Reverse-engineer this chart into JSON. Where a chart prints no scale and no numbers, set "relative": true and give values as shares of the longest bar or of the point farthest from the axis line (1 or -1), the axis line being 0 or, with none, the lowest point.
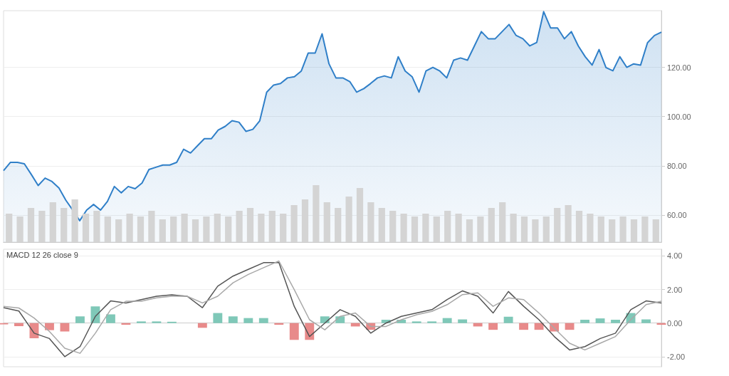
{
  "chart_data": [
    {
      "type": "area",
      "categories": [
        null,
        null,
        null,
        null,
        null,
        null,
        null,
        null,
        null,
        null,
        null,
        null,
        null,
        null,
        null,
        null,
        null,
        null,
        null,
        null,
        null,
        null,
        null,
        null,
        null,
        null,
        null,
        null,
        null,
        null,
        null,
        null,
        null,
        null,
        null,
        null,
        null,
        null,
        null,
        null,
        null,
        null,
        null,
        null,
        null,
        null,
        null,
        null,
        null,
        null,
        null,
        null,
        null,
        null,
        null,
        null,
        null,
        null,
        null,
        null,
        null,
        null,
        null,
        null,
        null,
        null,
        null,
        null,
        null,
        null,
        null,
        null,
        null,
        null,
        null,
        null,
        null,
        null,
        null,
        null,
        null,
        null,
        null,
        null,
        null,
        null,
        null,
        null,
        null,
        null,
        null,
        null,
        null,
        null,
        null,
        null
      ],
      "series": [
        {
          "color": "#2f7fc8",
          "values": [
            78,
            81.4,
            81.4,
            80.8,
            76.5,
            72,
            75,
            73.6,
            71,
            66,
            62,
            57.7,
            62,
            64.3,
            62,
            65.5,
            71.6,
            69,
            71.6,
            70.7,
            73,
            78.5,
            79.4,
            80.3,
            80.3,
            81.4,
            86.7,
            85.2,
            88.1,
            91,
            91,
            94.5,
            96,
            98.3,
            97.7,
            94,
            94.8,
            98.3,
            109.9,
            112.8,
            113.4,
            115.7,
            116.2,
            118.5,
            125.8,
            125.8,
            133.6,
            121.4,
            115.7,
            115.7,
            114.2,
            109.9,
            111.3,
            113.4,
            115.7,
            116.5,
            115.7,
            124.3,
            118.5,
            116.2,
            109.9,
            118.5,
            120,
            118.5,
            115.7,
            122.9,
            123.8,
            122.9,
            128.7,
            134.5,
            131.6,
            131.6,
            134.5,
            137.4,
            133,
            131.6,
            128.7,
            130.1,
            142.6,
            136,
            136,
            131.6,
            134.5,
            128.7,
            124.3,
            120.9,
            127.2,
            119.9,
            118.6,
            124.3,
            120,
            121.4,
            120.9,
            130,
            132.9,
            134.3
          ]
        }
      ],
      "ylim": [
        49,
        143
      ],
      "yticks": [
        {
          "value": 60,
          "label": "60.00"
        },
        {
          "value": 80,
          "label": "80.00"
        },
        {
          "value": 100,
          "label": "100.00"
        },
        {
          "value": 120,
          "label": "120.00"
        }
      ],
      "grid": "y",
      "marker": "none",
      "line_style": "solid",
      "tick_labels": "y"
    },
    {
      "type": "bar",
      "relative": true,
      "categories": [
        null,
        null,
        null,
        null,
        null,
        null,
        null,
        null,
        null,
        null,
        null,
        null,
        null,
        null,
        null,
        null,
        null,
        null,
        null,
        null,
        null,
        null,
        null,
        null,
        null,
        null,
        null,
        null,
        null,
        null,
        null,
        null,
        null,
        null,
        null,
        null,
        null,
        null,
        null,
        null,
        null,
        null,
        null,
        null,
        null,
        null,
        null,
        null,
        null,
        null,
        null,
        null,
        null,
        null,
        null,
        null,
        null,
        null,
        null,
        null
      ],
      "series": [
        {
          "color": "#d4d4d4",
          "values": [
            0.5,
            0.45,
            0.6,
            0.55,
            0.7,
            0.6,
            0.75,
            0.5,
            0.55,
            0.45,
            0.4,
            0.5,
            0.45,
            0.55,
            0.4,
            0.45,
            0.5,
            0.4,
            0.45,
            0.5,
            0.45,
            0.55,
            0.6,
            0.5,
            0.55,
            0.5,
            0.65,
            0.75,
            1,
            0.7,
            0.6,
            0.8,
            0.95,
            0.7,
            0.6,
            0.55,
            0.5,
            0.45,
            0.5,
            0.45,
            0.55,
            0.5,
            0.4,
            0.45,
            0.6,
            0.7,
            0.5,
            0.45,
            0.4,
            0.45,
            0.6,
            0.65,
            0.55,
            0.5,
            0.45,
            0.4,
            0.45,
            0.4,
            0.45,
            0.4
          ]
        }
      ],
      "grid": false,
      "tick_labels": false
    },
    {
      "type": "line",
      "title": "MACD 12 26 close 9",
      "categories": [
        null,
        null,
        null,
        null,
        null,
        null,
        null,
        null,
        null,
        null,
        null,
        null,
        null,
        null,
        null,
        null,
        null,
        null,
        null,
        null,
        null,
        null,
        null,
        null,
        null,
        null,
        null,
        null,
        null,
        null,
        null,
        null,
        null,
        null,
        null,
        null,
        null,
        null,
        null,
        null,
        null,
        null,
        null,
        null
      ],
      "series": [
        {
          "color": "#555555",
          "values": [
            0.92,
            0.72,
            -0.6,
            -0.92,
            -2.0,
            -1.4,
            0.4,
            1.32,
            1.2,
            1.4,
            1.6,
            1.68,
            1.6,
            0.92,
            2.2,
            2.8,
            3.2,
            3.6,
            3.6,
            1.0,
            -0.8,
            0,
            0.8,
            0.4,
            -0.6,
            0,
            0.4,
            0.6,
            0.8,
            1.4,
            1.92,
            1.6,
            0.6,
            1.88,
            1.0,
            0.2,
            -0.8,
            -1.6,
            -1.4,
            -0.92,
            -0.6,
            0.8,
            1.32,
            1.2
          ]
        },
        {
          "color": "#a8a8a8",
          "values": [
            1.0,
            0.9,
            0.3,
            -0.5,
            -1.5,
            -1.8,
            -0.6,
            0.8,
            1.3,
            1.3,
            1.5,
            1.6,
            1.6,
            1.2,
            1.6,
            2.4,
            2.9,
            3.3,
            3.7,
            2.0,
            0.2,
            -0.4,
            0.4,
            0.6,
            -0.2,
            -0.2,
            0.2,
            0.5,
            0.7,
            1.1,
            1.7,
            1.8,
            1.0,
            1.5,
            1.4,
            0.6,
            -0.3,
            -1.2,
            -1.6,
            -1.2,
            -0.8,
            0.2,
            1.1,
            1.3
          ]
        },
        {
          "type": "bar",
          "values": [
            -0.08,
            -0.18,
            -0.9,
            -0.42,
            -0.5,
            0.4,
            1.0,
            0.52,
            -0.1,
            0.1,
            0.1,
            0.08,
            0,
            -0.28,
            0.6,
            0.4,
            0.3,
            0.3,
            -0.1,
            -1.0,
            -1.0,
            0.4,
            0.4,
            -0.2,
            -0.4,
            0.2,
            0.2,
            0.1,
            0.1,
            0.3,
            0.22,
            -0.2,
            -0.4,
            0.38,
            -0.4,
            -0.4,
            -0.5,
            -0.4,
            0.2,
            0.28,
            0.2,
            0.6,
            0.22,
            -0.1
          ],
          "colors": [
            "#e88a8a",
            "#e88a8a",
            "#e88a8a",
            "#e88a8a",
            "#e88a8a",
            "#7fc8b8",
            "#7fc8b8",
            "#7fc8b8",
            "#e88a8a",
            "#7fc8b8",
            "#7fc8b8",
            "#7fc8b8",
            "#7fc8b8",
            "#e88a8a",
            "#7fc8b8",
            "#7fc8b8",
            "#7fc8b8",
            "#7fc8b8",
            "#e88a8a",
            "#e88a8a",
            "#e88a8a",
            "#7fc8b8",
            "#7fc8b8",
            "#e88a8a",
            "#e88a8a",
            "#7fc8b8",
            "#7fc8b8",
            "#7fc8b8",
            "#7fc8b8",
            "#7fc8b8",
            "#7fc8b8",
            "#e88a8a",
            "#e88a8a",
            "#7fc8b8",
            "#e88a8a",
            "#e88a8a",
            "#e88a8a",
            "#e88a8a",
            "#7fc8b8",
            "#7fc8b8",
            "#7fc8b8",
            "#7fc8b8",
            "#7fc8b8",
            "#e88a8a"
          ]
        }
      ],
      "ylim": [
        -2.6,
        4.4
      ],
      "yticks": [
        {
          "value": -2,
          "label": "-2.00"
        },
        {
          "value": 0,
          "label": "0.00"
        },
        {
          "value": 2,
          "label": "2.00"
        },
        {
          "value": 4,
          "label": "4.00"
        }
      ],
      "grid": "y",
      "marker": "none",
      "line_style": "solid",
      "tick_labels": "y"
    }
  ]
}
